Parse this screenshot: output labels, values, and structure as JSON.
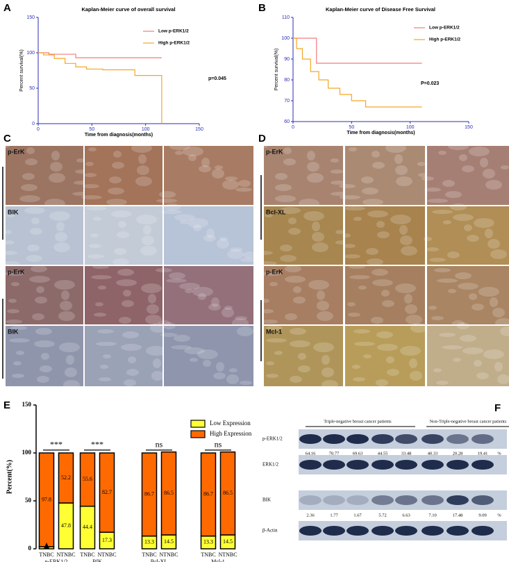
{
  "panel_labels": [
    "A",
    "B",
    "C",
    "D",
    "E",
    "F"
  ],
  "chart_data": [
    {
      "type": "line",
      "title": "Kaplan-Meier curve of overall survival",
      "xlabel": "Time from diagnosis(months)",
      "ylabel": "Percent survival(%)",
      "xlim": [
        0,
        150
      ],
      "ylim": [
        0,
        150
      ],
      "xticks": [
        0,
        50,
        100,
        150
      ],
      "yticks": [
        0,
        50,
        100,
        150
      ],
      "series": [
        {
          "name": "Low p-ERK1/2",
          "color": "#f07c7c",
          "x": [
            0,
            10,
            10,
            35,
            35,
            115
          ],
          "values": [
            100,
            100,
            98,
            98,
            93,
            93
          ]
        },
        {
          "name": "High p-ERK1/2",
          "color": "#f5a623",
          "x": [
            0,
            5,
            5,
            15,
            15,
            25,
            25,
            35,
            35,
            45,
            45,
            60,
            60,
            90,
            90,
            115,
            115
          ],
          "values": [
            100,
            100,
            97,
            97,
            92,
            92,
            85,
            85,
            80,
            80,
            77,
            77,
            76,
            76,
            68,
            68,
            0
          ]
        }
      ],
      "annotation": "p=0.045"
    },
    {
      "type": "line",
      "title": "Kaplan-Meier curve of Disease Free Survival",
      "xlabel": "Time from diagnosis(months)",
      "ylabel": "Percent survival(%)",
      "xlim": [
        0,
        150
      ],
      "ylim": [
        60,
        110
      ],
      "xticks": [
        0,
        50,
        100,
        150
      ],
      "yticks": [
        60,
        70,
        80,
        90,
        100,
        110
      ],
      "series": [
        {
          "name": "Low p-ERK1/2",
          "color": "#f07c7c",
          "x": [
            0,
            20,
            20,
            110
          ],
          "values": [
            100,
            100,
            88,
            88
          ]
        },
        {
          "name": "High p-ERK1/2",
          "color": "#f5a623",
          "x": [
            0,
            3,
            3,
            8,
            8,
            15,
            15,
            22,
            22,
            30,
            30,
            40,
            40,
            50,
            50,
            62,
            62,
            110
          ],
          "values": [
            100,
            100,
            95,
            95,
            90,
            90,
            84,
            84,
            80,
            80,
            76,
            76,
            73,
            73,
            70,
            70,
            67,
            67
          ]
        }
      ],
      "annotation": "P=0.023"
    },
    {
      "type": "bar",
      "stacked": true,
      "ylabel": "Percent(%)",
      "categories": [
        "TNBC",
        "NTNBC",
        "TNBC",
        "NTNBC",
        "TNBC",
        "NTNBC",
        "TNBC",
        "NTNBC"
      ],
      "groups": [
        "p-ERK1/2",
        "BIK",
        "Bcl-XL",
        "Mcl-1"
      ],
      "significance": [
        "***",
        "***",
        "ns",
        "ns"
      ],
      "ylim": [
        0,
        150
      ],
      "yticks": [
        0,
        50,
        100,
        150
      ],
      "series": [
        {
          "name": "Low Expression",
          "color": "#ffff33",
          "values": [
            2.2,
            47.8,
            44.4,
            17.3,
            13.3,
            14.5,
            13.3,
            14.5
          ]
        },
        {
          "name": "High Expression",
          "color": "#ff6a00",
          "values": [
            97.8,
            52.2,
            55.6,
            82.7,
            86.7,
            86.5,
            86.7,
            86.5
          ]
        }
      ]
    }
  ],
  "ihc_c": {
    "row_labels": [
      "p-ErK",
      "BIK",
      "p-ErK",
      "BIK"
    ]
  },
  "ihc_d": {
    "row_labels": [
      "p-ErK",
      "Bcl-XL",
      "p-ErK",
      "Mcl-1"
    ]
  },
  "western_blot": {
    "headers": [
      "Triple-negative breast cancer patients",
      "Non-Triple-negative breast cancer patients"
    ],
    "rows": [
      "p-ERK1/2",
      "ERK1/2",
      "BIK",
      "β-Actin"
    ],
    "pERK_ratios": [
      "64.16",
      "70.77",
      "69.63",
      "44.55",
      "33.48",
      "40.33",
      "20.28",
      "19.41"
    ],
    "BIK_ratios": [
      "2.36",
      "1.77",
      "1.67",
      "5.72",
      "6.63",
      "7.10",
      "17.48",
      "9.09"
    ],
    "unit": "%"
  }
}
